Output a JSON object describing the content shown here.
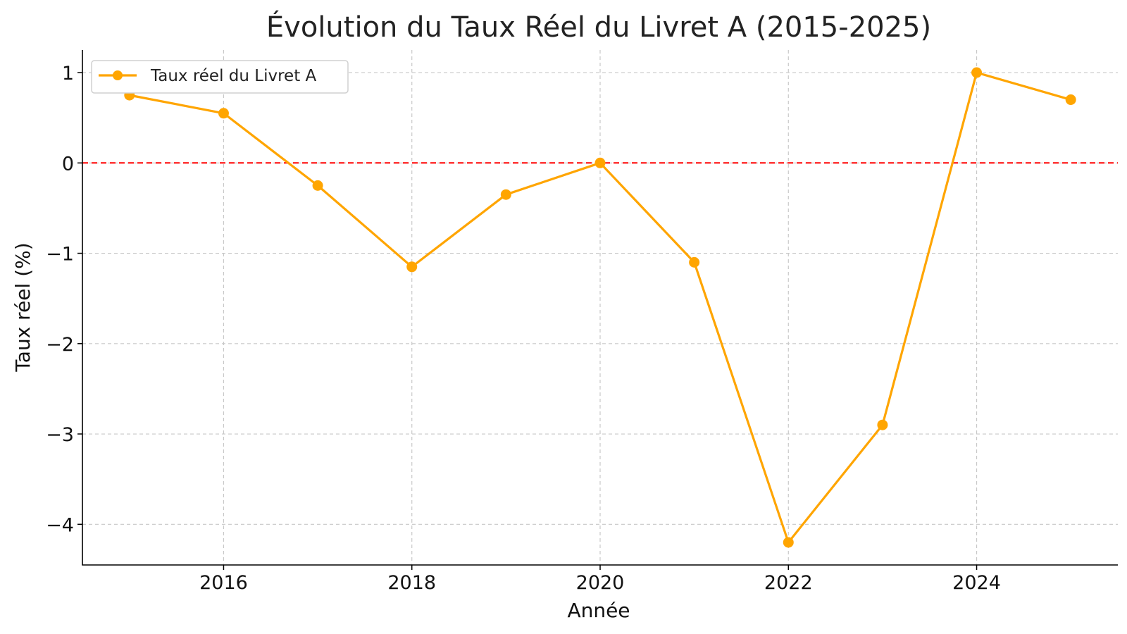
{
  "chart_data": {
    "type": "line",
    "title": "Évolution du Taux Réel du Livret A (2015-2025)",
    "xlabel": "Année",
    "ylabel": "Taux réel (%)",
    "x": [
      2015,
      2016,
      2017,
      2018,
      2019,
      2020,
      2021,
      2022,
      2023,
      2024,
      2025
    ],
    "series": [
      {
        "name": "Taux réel du Livret A",
        "color": "#FFA500",
        "marker": "circle",
        "values": [
          0.75,
          0.55,
          -0.25,
          -1.15,
          -0.35,
          0.0,
          -1.1,
          -4.2,
          -2.9,
          1.0,
          0.7
        ]
      }
    ],
    "xlim": [
      2014.5,
      2025.5
    ],
    "ylim": [
      -4.45,
      1.25
    ],
    "x_ticks": [
      2016,
      2018,
      2020,
      2022,
      2024
    ],
    "x_tick_labels": [
      "2016",
      "2018",
      "2020",
      "2022",
      "2024"
    ],
    "y_ticks": [
      1,
      0,
      -1,
      -2,
      -3,
      -4
    ],
    "y_tick_labels": [
      "1",
      "0",
      "−1",
      "−2",
      "−3",
      "−4"
    ],
    "reference_line": {
      "y": 0,
      "color": "#FF0000",
      "style": "dashed"
    },
    "grid": true,
    "legend_position": "upper-left"
  }
}
